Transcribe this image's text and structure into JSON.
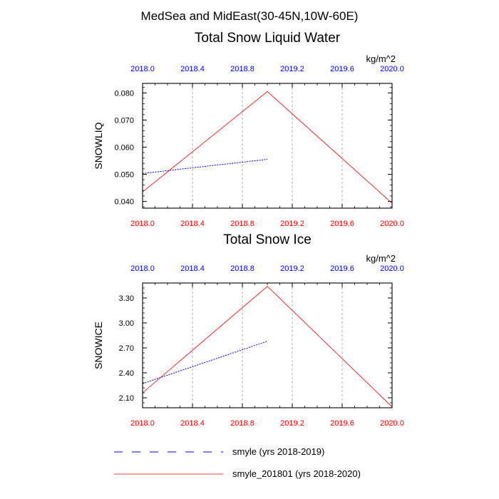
{
  "figure": {
    "title": "MedSea and MidEast(30-45N,10W-60E)"
  },
  "chart_data": [
    {
      "type": "line",
      "title": "Total Snow Liquid Water",
      "units": "kg/m^2",
      "ylabel": "SNOWLIQ",
      "xlim": [
        2018.0,
        2020.0
      ],
      "ylim": [
        0.0375,
        0.0835
      ],
      "x_ticks": [
        "2018.0",
        "2018.4",
        "2018.8",
        "2019.2",
        "2019.6",
        "2020.0"
      ],
      "y_ticks": [
        "0.040",
        "0.050",
        "0.060",
        "0.070",
        "0.080"
      ],
      "gridlines_x": [
        2018.4,
        2018.8,
        2019.2,
        2019.6
      ],
      "series": [
        {
          "name": "smyle (yrs 2018-2019)",
          "color": "#0000ff",
          "dash": true,
          "x": [
            2018.0,
            2019.0
          ],
          "y": [
            0.0503,
            0.0555
          ]
        },
        {
          "name": "smyle_201801 (yrs 2018-2020)",
          "color": "#ff0000",
          "dash": false,
          "x": [
            2018.0,
            2019.0,
            2020.0
          ],
          "y": [
            0.0435,
            0.0805,
            0.0393
          ]
        }
      ]
    },
    {
      "type": "line",
      "title": "Total Snow Ice",
      "units": "kg/m^2",
      "ylabel": "SNOWICE",
      "xlim": [
        2018.0,
        2020.0
      ],
      "ylim": [
        1.98,
        3.48
      ],
      "x_ticks": [
        "2018.0",
        "2018.4",
        "2018.8",
        "2019.2",
        "2019.6",
        "2020.0"
      ],
      "y_ticks": [
        "2.10",
        "2.40",
        "2.70",
        "3.00",
        "3.30"
      ],
      "gridlines_x": [
        2018.4,
        2018.8,
        2019.2,
        2019.6
      ],
      "series": [
        {
          "name": "smyle (yrs 2018-2019)",
          "color": "#0000ff",
          "dash": true,
          "x": [
            2018.0,
            2019.0
          ],
          "y": [
            2.27,
            2.78
          ]
        },
        {
          "name": "smyle_201801 (yrs 2018-2020)",
          "color": "#ff0000",
          "dash": false,
          "x": [
            2018.0,
            2019.0,
            2020.0
          ],
          "y": [
            2.16,
            3.44,
            1.99
          ]
        }
      ]
    }
  ],
  "legend": {
    "items": [
      {
        "label": "smyle (yrs 2018-2019)",
        "color": "#0000ff",
        "dash": true
      },
      {
        "label": "smyle_201801 (yrs 2018-2020)",
        "color": "#ff0000",
        "dash": false
      }
    ]
  },
  "colors": {
    "bottom_tick_labels": "#ff0000",
    "top_tick_labels": "#0000ff",
    "grid": "#999999"
  }
}
